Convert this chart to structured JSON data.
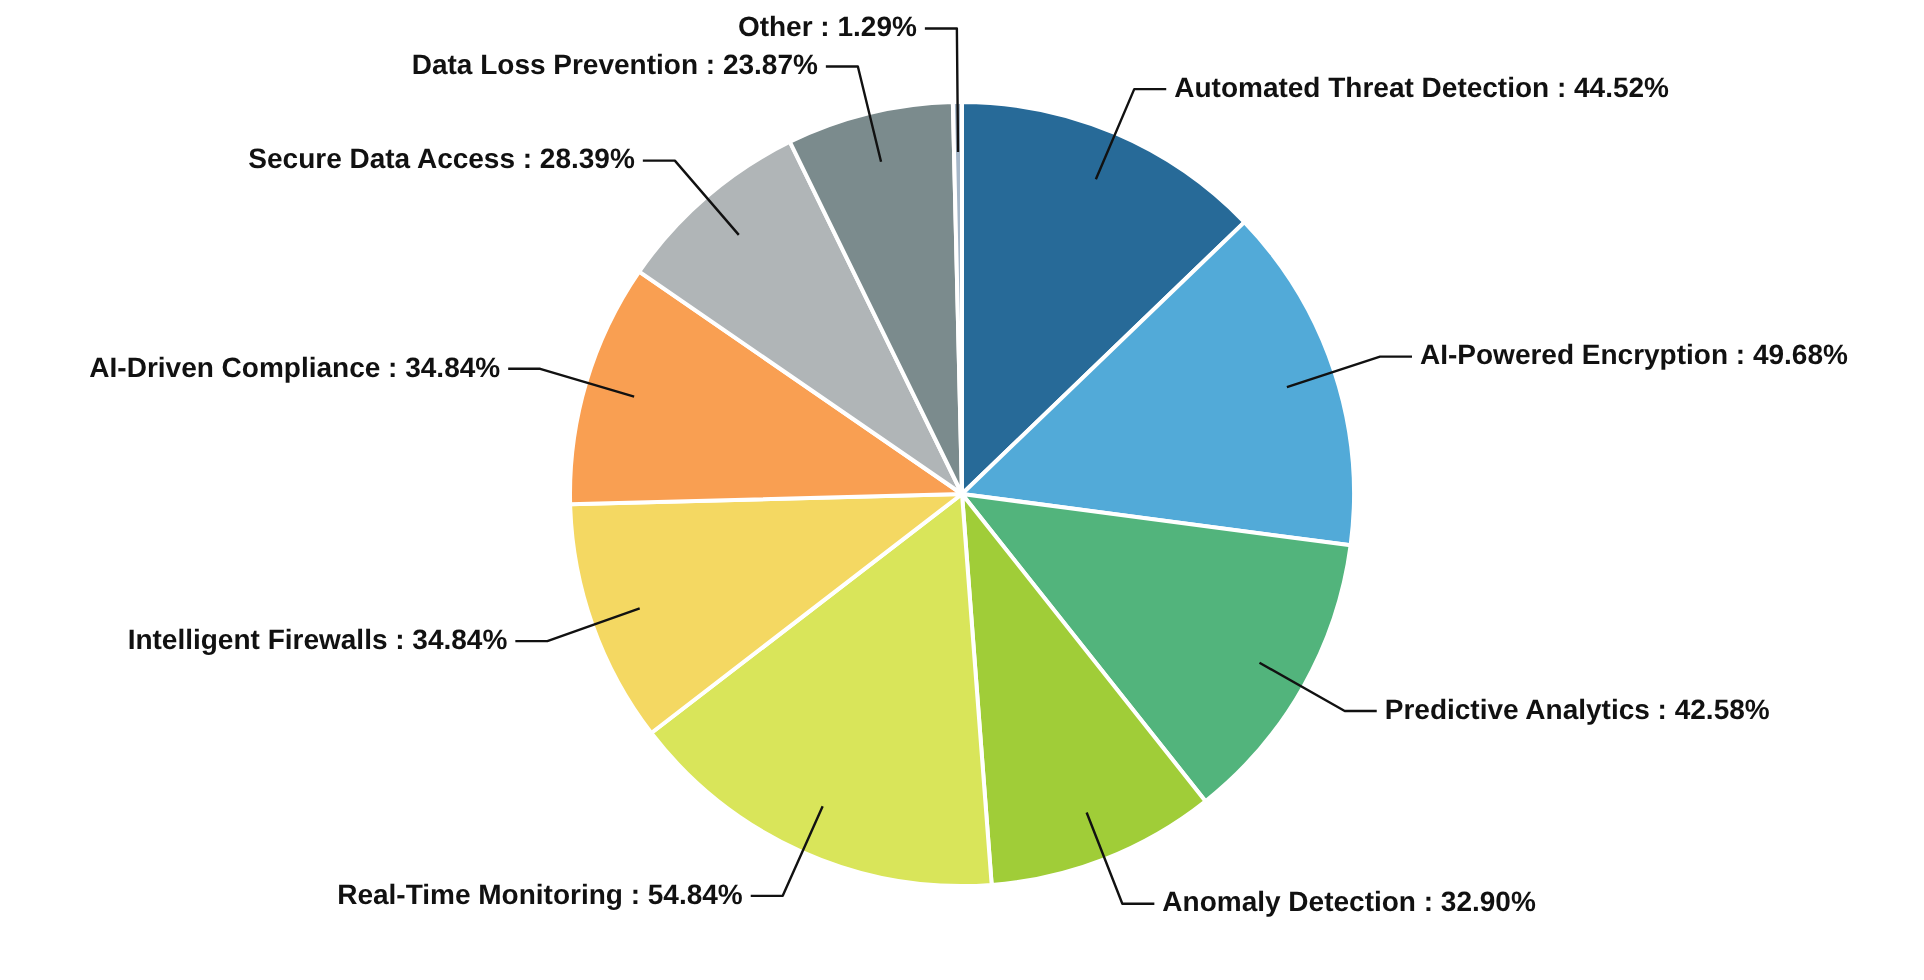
{
  "chart_data": {
    "type": "pie",
    "categories": [
      "Automated Threat Detection",
      "AI-Powered Encryption",
      "Predictive Analytics",
      "Anomaly Detection",
      "Real-Time Monitoring",
      "Intelligent Firewalls",
      "AI-Driven Compliance",
      "Secure Data Access",
      "Data Loss Prevention",
      "Other"
    ],
    "values": [
      44.52,
      49.68,
      42.58,
      32.9,
      54.84,
      34.84,
      34.84,
      28.39,
      23.87,
      1.29
    ],
    "value_labels": [
      "44.52%",
      "49.68%",
      "42.58%",
      "32.90%",
      "54.84%",
      "34.84%",
      "34.84%",
      "28.39%",
      "23.87%",
      "1.29%"
    ],
    "colors": [
      "#276a98",
      "#52aad8",
      "#52b47c",
      "#a0cd38",
      "#d9e55a",
      "#f4d862",
      "#f99f52",
      "#b0b5b7",
      "#7b8b8d",
      "#a4b6c8"
    ],
    "legend": false
  }
}
